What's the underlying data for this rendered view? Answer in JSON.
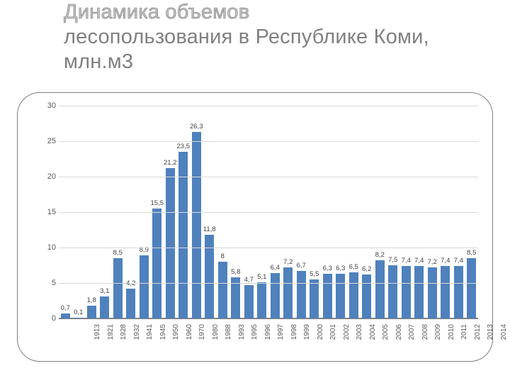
{
  "title": {
    "line1_stroke": "Динамика объемов",
    "line2": "лесопользования в Республике Коми, млн.м3",
    "fontsize": 29,
    "color": "#808080",
    "stroke_color": "#c0c0c0"
  },
  "chart": {
    "type": "bar",
    "background_color": "#ffffff",
    "frame_border_color": "#7f7f7f",
    "frame_border_radius": 32,
    "bar_color": "#4f81bd",
    "bar_width": 0.7,
    "grid_color": "#d9d9d9",
    "baseline_color": "#808080",
    "label_fontsize": 9.5,
    "label_color": "#404040",
    "ytick_fontsize": 11,
    "ytick_color": "#595959",
    "xtick_fontsize": 10,
    "xtick_color": "#595959",
    "ylim": [
      0,
      30
    ],
    "ytick_step": 5,
    "decimal_separator": ",",
    "categories": [
      "1913",
      "1921",
      "1928",
      "1932",
      "1941",
      "1945",
      "1950",
      "1960",
      "1970",
      "1980",
      "1988",
      "1993",
      "1995",
      "1996",
      "1997",
      "1998",
      "1999",
      "2000",
      "2001",
      "2002",
      "2003",
      "2004",
      "2005",
      "2006",
      "2007",
      "2008",
      "2009",
      "2010",
      "2011",
      "2012",
      "2013",
      "2014"
    ],
    "values": [
      0.7,
      0.1,
      1.8,
      3.1,
      8.5,
      4.2,
      8.9,
      15.5,
      21.2,
      23.5,
      26.3,
      11.8,
      8,
      5.8,
      4.7,
      5.1,
      6.4,
      7.2,
      6.7,
      5.5,
      6.3,
      6.3,
      6.5,
      6.2,
      8.2,
      7.5,
      7.4,
      7.4,
      7.2,
      7.4,
      7.4,
      8.5
    ]
  }
}
